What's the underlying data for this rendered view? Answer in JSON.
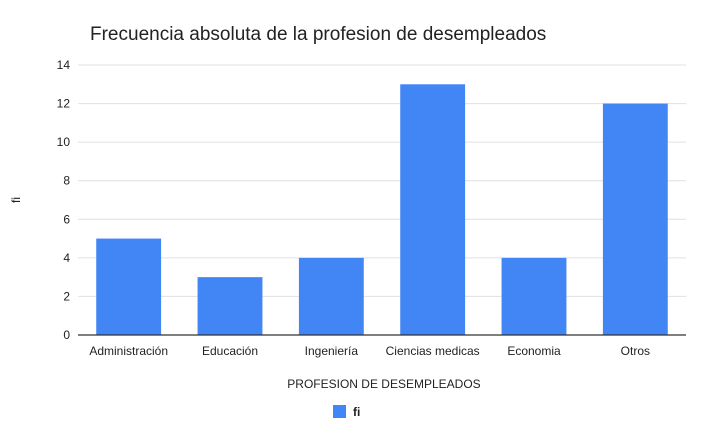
{
  "chart_data": {
    "type": "bar",
    "title": "Frecuencia absoluta de la profesion de desempleados",
    "xlabel": "PROFESION DE DESEMPLEADOS",
    "ylabel": "fi",
    "categories": [
      "Administración",
      "Educación",
      "Ingeniería",
      "Ciencias medicas",
      "Economia",
      "Otros"
    ],
    "series": [
      {
        "name": "fi",
        "values": [
          5,
          3,
          4,
          13,
          4,
          12
        ],
        "color": "#4285f4"
      }
    ],
    "ylim": [
      0,
      14
    ],
    "yticks": [
      0,
      2,
      4,
      6,
      8,
      10,
      12,
      14
    ],
    "grid": true,
    "legend": "bottom",
    "colors": {
      "bar": "#4285f4",
      "grid": "#e0e0e0",
      "axis": "#333333",
      "text": "#222222"
    }
  }
}
